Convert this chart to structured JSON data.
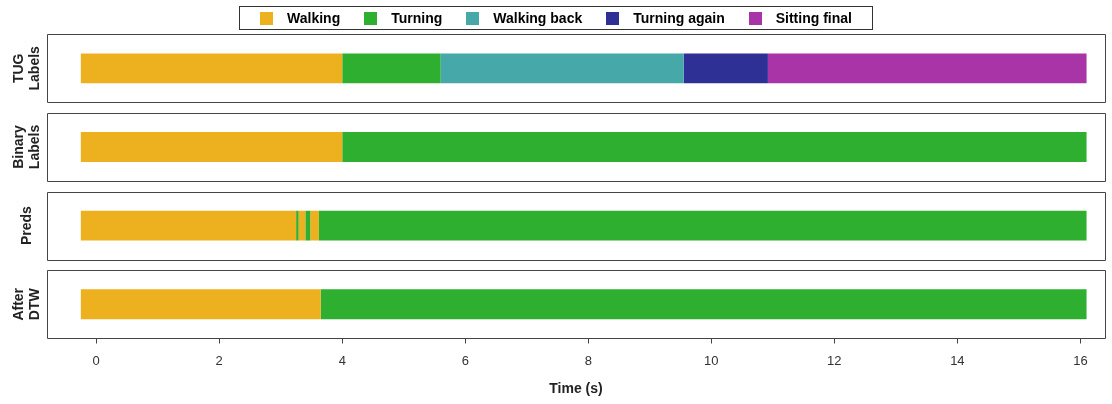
{
  "chart_data": {
    "type": "bar",
    "orientation": "horizontal",
    "categories": [
      "TUG Labels",
      "Binary Labels",
      "Preds",
      "After DTW"
    ],
    "xlim": [
      -0.8,
      16.4
    ],
    "xticks": [
      0,
      2,
      4,
      6,
      8,
      10,
      12,
      14,
      16
    ],
    "xlabel": "Time (s)",
    "legend": "top",
    "series": [
      {
        "name": "Walking",
        "color": "#edb120",
        "base": [
          -0.25,
          -0.25,
          -0.25,
          -0.25
        ],
        "values": [
          4.25,
          4.25,
          3.5,
          3.9
        ]
      },
      {
        "name": "Turning",
        "color": "#2eaf2f",
        "base": [
          4.0,
          4.0,
          3.62,
          3.65
        ],
        "values": [
          1.6,
          12.1,
          12.48,
          12.45
        ]
      },
      {
        "name": "Walking back",
        "color": "#46a8a8",
        "base": [
          5.6,
          null,
          null,
          null
        ],
        "values": [
          3.95,
          null,
          null,
          null
        ]
      },
      {
        "name": "Turning again",
        "color": "#2e3095",
        "base": [
          9.55,
          null,
          null,
          null
        ],
        "values": [
          1.37,
          null,
          null,
          null
        ]
      },
      {
        "name": "Sitting final",
        "color": "#a934a8",
        "base": [
          10.92,
          null,
          null,
          null
        ],
        "values": [
          5.18,
          null,
          null,
          null
        ]
      },
      {
        "color": "#2eaf2f",
        "base": [
          null,
          null,
          3.25,
          null
        ],
        "values": [
          null,
          null,
          0.04,
          null
        ]
      },
      {
        "color": "#edb120",
        "base": [
          null,
          null,
          3.29,
          null
        ],
        "values": [
          null,
          null,
          0.11,
          null
        ]
      },
      {
        "color": "#2eaf2f",
        "base": [
          null,
          null,
          3.4,
          null
        ],
        "values": [
          null,
          null,
          0.08,
          null
        ]
      },
      {
        "color": "#edb120",
        "base": [
          null,
          null,
          3.48,
          null
        ],
        "values": [
          null,
          null,
          0.14,
          null
        ]
      }
    ]
  }
}
